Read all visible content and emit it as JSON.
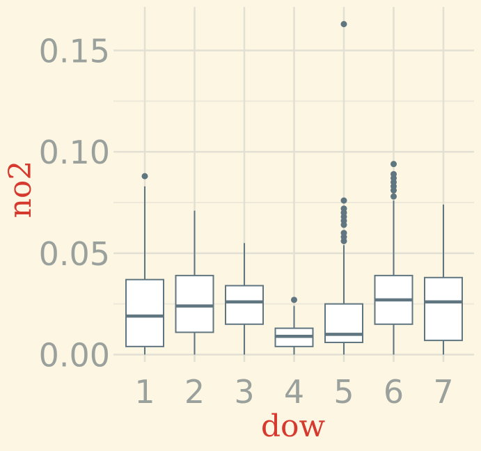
{
  "chart_data": {
    "type": "boxplot",
    "title": "",
    "xlabel": "dow",
    "ylabel": "no2",
    "categories": [
      "1",
      "2",
      "3",
      "4",
      "5",
      "6",
      "7"
    ],
    "yticks": [
      {
        "value": 0.0,
        "label": "0.00"
      },
      {
        "value": 0.05,
        "label": "0.05"
      },
      {
        "value": 0.1,
        "label": "0.10"
      },
      {
        "value": 0.15,
        "label": "0.15"
      }
    ],
    "ylim": [
      -0.003,
      0.171
    ],
    "grid": true,
    "legend": "none",
    "boxes": [
      {
        "category": "1",
        "whisker_low": 0.0,
        "q1": 0.004,
        "median": 0.019,
        "q3": 0.037,
        "whisker_high": 0.083,
        "outliers": [
          0.088
        ]
      },
      {
        "category": "2",
        "whisker_low": 0.0,
        "q1": 0.011,
        "median": 0.024,
        "q3": 0.039,
        "whisker_high": 0.071,
        "outliers": []
      },
      {
        "category": "3",
        "whisker_low": 0.0,
        "q1": 0.015,
        "median": 0.026,
        "q3": 0.034,
        "whisker_high": 0.055,
        "outliers": []
      },
      {
        "category": "4",
        "whisker_low": 0.0,
        "q1": 0.004,
        "median": 0.009,
        "q3": 0.013,
        "whisker_high": 0.024,
        "outliers": [
          0.027
        ]
      },
      {
        "category": "5",
        "whisker_low": 0.0,
        "q1": 0.006,
        "median": 0.01,
        "q3": 0.025,
        "whisker_high": 0.054,
        "outliers": [
          0.056,
          0.058,
          0.06,
          0.064,
          0.066,
          0.068,
          0.07,
          0.072,
          0.076,
          0.163
        ]
      },
      {
        "category": "6",
        "whisker_low": 0.0,
        "q1": 0.015,
        "median": 0.027,
        "q3": 0.039,
        "whisker_high": 0.076,
        "outliers": [
          0.078,
          0.081,
          0.083,
          0.085,
          0.087,
          0.089,
          0.094
        ]
      },
      {
        "category": "7",
        "whisker_low": 0.0,
        "q1": 0.007,
        "median": 0.026,
        "q3": 0.038,
        "whisker_high": 0.074,
        "outliers": []
      }
    ],
    "colors": {
      "background": "#fdf6e3",
      "grid_major": "#e2dfd3",
      "grid_minor": "#ede8da",
      "box_stroke": "#5f7580",
      "box_fill": "#ffffff",
      "tick_text": "#9aa19c",
      "axis_title": "#d63a2e"
    }
  }
}
